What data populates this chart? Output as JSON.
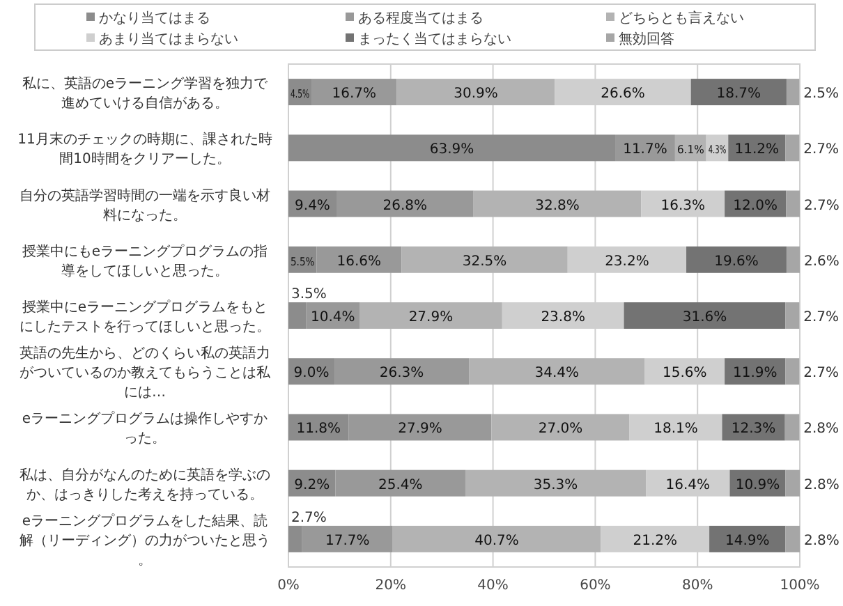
{
  "chart_data": {
    "type": "bar",
    "orientation": "horizontal",
    "stacked": true,
    "categories": [
      "私に、英語のeラーニング学習を独力で進めていける自信がある。",
      "11月末のチェックの時期に、課された時間10時間をクリアーした。",
      "自分の英語学習時間の一端を示す良い材料になった。",
      "授業中にもeラーニングプログラムの指導をしてほしいと思った。",
      "授業中にeラーニングプログラムをもとにしたテストを行ってほしいと思った。",
      "英語の先生から、どのくらい私の英語力がついているのか教えてもらうことは私には…",
      "eラーニングプログラムは操作しやすかった。",
      "私は、自分がなんのために英語を学ぶのか、はっきりした考えを持っている。",
      "eラーニングプログラムをした結果、読解（リーディング）の力がついたと思う。"
    ],
    "series": [
      {
        "name": "かなり当てはまる",
        "color": "#8c8c8c",
        "values": [
          4.5,
          63.9,
          9.4,
          5.5,
          3.5,
          9.0,
          11.8,
          9.2,
          2.7
        ],
        "value_labels": [
          "4.5%",
          "63.9%",
          "9.4%",
          "5.5%",
          "3.5%",
          "9.0%",
          "11.8%",
          "9.2%",
          "2.7%"
        ]
      },
      {
        "name": "ある程度当てはまる",
        "color": "#999999",
        "values": [
          16.7,
          11.7,
          26.8,
          16.6,
          10.4,
          26.3,
          27.9,
          25.4,
          17.7
        ],
        "value_labels": [
          "16.7%",
          "11.7%",
          "26.8%",
          "16.6%",
          "10.4%",
          "26.3%",
          "27.9%",
          "25.4%",
          "17.7%"
        ]
      },
      {
        "name": "どちらとも言えない",
        "color": "#b3b3b3",
        "values": [
          30.9,
          6.1,
          32.8,
          32.5,
          27.9,
          34.4,
          27.0,
          35.3,
          40.7
        ],
        "value_labels": [
          "30.9%",
          "6.1%",
          "32.8%",
          "32.5%",
          "27.9%",
          "34.4%",
          "27.0%",
          "35.3%",
          "40.7%"
        ]
      },
      {
        "name": "あまり当てはまらない",
        "color": "#cfcfcf",
        "values": [
          26.6,
          4.3,
          16.3,
          23.2,
          23.8,
          15.6,
          18.1,
          16.4,
          21.2
        ],
        "value_labels": [
          "26.6%",
          "4.3%",
          "16.3%",
          "23.2%",
          "23.8%",
          "15.6%",
          "18.1%",
          "16.4%",
          "21.2%"
        ]
      },
      {
        "name": "まったく当てはまらない",
        "color": "#737373",
        "values": [
          18.7,
          11.2,
          12.0,
          19.6,
          31.6,
          11.9,
          12.3,
          10.9,
          14.9
        ],
        "value_labels": [
          "18.7%",
          "11.2%",
          "12.0%",
          "19.6%",
          "31.6%",
          "11.9%",
          "12.3%",
          "10.9%",
          "14.9%"
        ]
      },
      {
        "name": "無効回答",
        "color": "#a6a6a6",
        "values": [
          2.5,
          2.7,
          2.7,
          2.6,
          2.7,
          2.7,
          2.8,
          2.8,
          2.8
        ],
        "value_labels": [
          "2.5%",
          "2.7%",
          "2.7%",
          "2.6%",
          "2.7%",
          "2.7%",
          "2.8%",
          "2.8%",
          "2.8%"
        ]
      }
    ],
    "xlim": [
      0,
      100
    ],
    "xticks": [
      {
        "value": 0,
        "label": "0%"
      },
      {
        "value": 20,
        "label": "20%"
      },
      {
        "value": 40,
        "label": "40%"
      },
      {
        "value": 60,
        "label": "60%"
      },
      {
        "value": 80,
        "label": "80%"
      },
      {
        "value": 100,
        "label": "100%"
      }
    ],
    "grid": "x",
    "legend": "top"
  }
}
